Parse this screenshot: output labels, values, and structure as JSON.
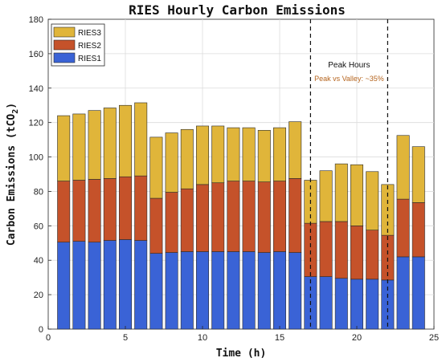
{
  "chart_data": {
    "type": "bar",
    "stacked": true,
    "title": "RIES Hourly Carbon Emissions",
    "xlabel": "Time (h)",
    "ylabel_main": "Carbon Emissions (tCO",
    "ylabel_sub": "2",
    "ylabel_close": ")",
    "xlim": [
      0,
      25
    ],
    "ylim": [
      0,
      180
    ],
    "xticks": [
      0,
      5,
      10,
      15,
      20,
      25
    ],
    "yticks": [
      0,
      20,
      40,
      60,
      80,
      100,
      120,
      140,
      160,
      180
    ],
    "grid": true,
    "legend_position": "top-left",
    "x": [
      1,
      2,
      3,
      4,
      5,
      6,
      7,
      8,
      9,
      10,
      11,
      12,
      13,
      14,
      15,
      16,
      17,
      18,
      19,
      20,
      21,
      22,
      23,
      24
    ],
    "series": [
      {
        "name": "RIES1",
        "color": "#3a63d6",
        "values": [
          50.5,
          51,
          50.5,
          51.5,
          52,
          51.5,
          44,
          44.5,
          45,
          45,
          45,
          45,
          45,
          44.5,
          45,
          44.5,
          30.5,
          30.5,
          29.5,
          29,
          29,
          28.5,
          42,
          42
        ]
      },
      {
        "name": "RIES2",
        "color": "#c5522a",
        "values": [
          35.5,
          35.5,
          36.5,
          36,
          36.5,
          37.5,
          32,
          35,
          36.5,
          39,
          40,
          41,
          41,
          41,
          41,
          43,
          31,
          32,
          33,
          31,
          28.5,
          26,
          33.5,
          31.5
        ]
      },
      {
        "name": "RIES3",
        "color": "#e0b53a",
        "values": [
          38,
          38.5,
          40,
          41,
          41.5,
          42.5,
          35.5,
          34.5,
          34.5,
          34,
          33,
          31,
          31,
          30,
          31,
          33,
          25,
          29.5,
          33.5,
          35.5,
          34,
          29.5,
          37,
          32.5
        ]
      }
    ],
    "legend_order": [
      "RIES3",
      "RIES2",
      "RIES1"
    ],
    "vlines": [
      17,
      22
    ],
    "annotations": {
      "peak_label": "Peak Hours",
      "peak_vs_valley": "Peak vs Valley: ~35%",
      "peak_vs_valley_color": "#b5641e"
    }
  }
}
